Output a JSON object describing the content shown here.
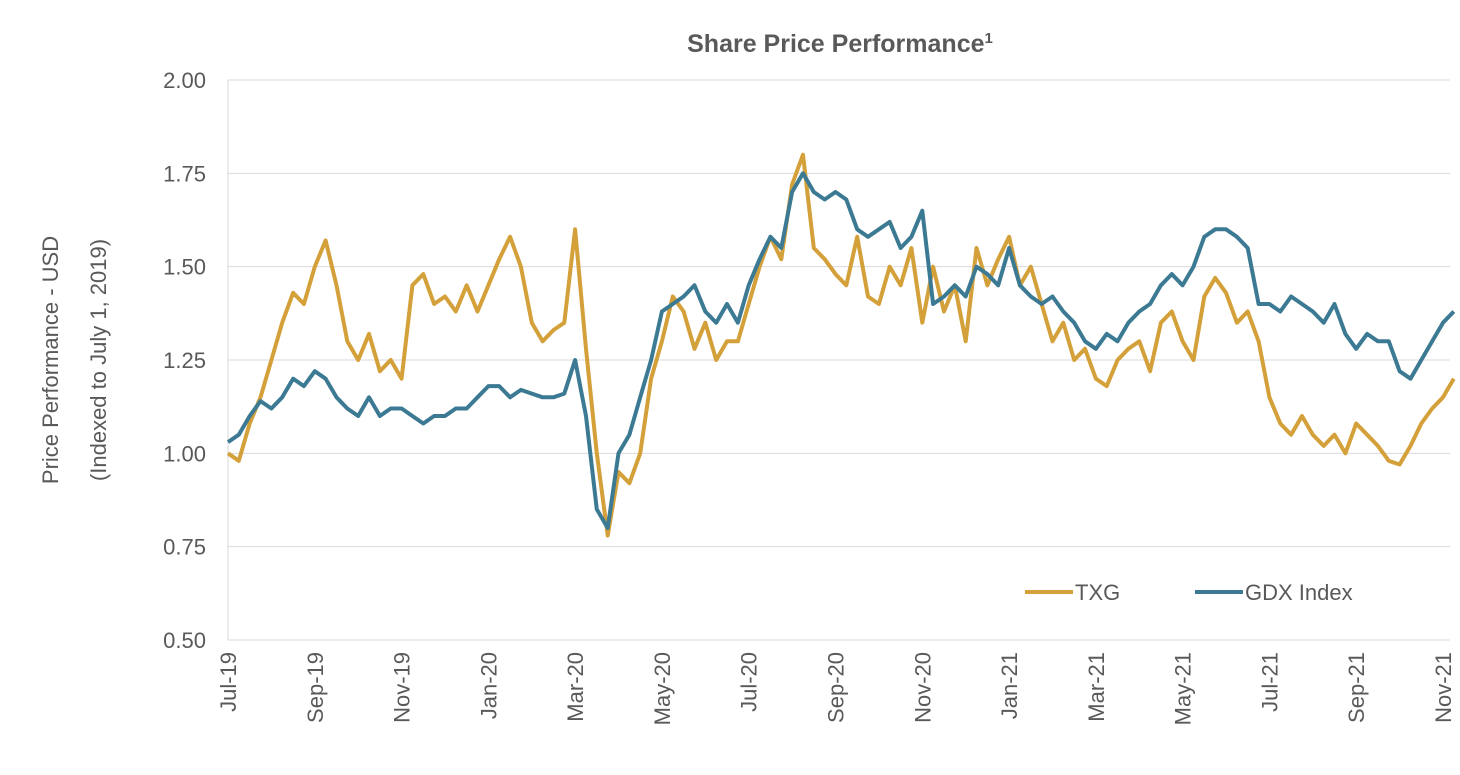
{
  "chart_data": {
    "type": "line",
    "title": "Share Price Performance",
    "title_footnote": "1",
    "ylabel": [
      "Price Performance - USD",
      "(Indexed to July 1, 2019)"
    ],
    "categories": [
      "Jul-19",
      null,
      null,
      null,
      null,
      null,
      null,
      null,
      "Sep-19",
      null,
      null,
      null,
      null,
      null,
      null,
      null,
      "Nov-19",
      null,
      null,
      null,
      null,
      null,
      null,
      null,
      "Jan-20",
      null,
      null,
      null,
      null,
      null,
      null,
      null,
      "Mar-20",
      null,
      null,
      null,
      null,
      null,
      null,
      null,
      "May-20",
      null,
      null,
      null,
      null,
      null,
      null,
      null,
      "Jul-20",
      null,
      null,
      null,
      null,
      null,
      null,
      null,
      "Sep-20",
      null,
      null,
      null,
      null,
      null,
      null,
      null,
      "Nov-20",
      null,
      null,
      null,
      null,
      null,
      null,
      null,
      "Jan-21",
      null,
      null,
      null,
      null,
      null,
      null,
      null,
      "Mar-21",
      null,
      null,
      null,
      null,
      null,
      null,
      null,
      "May-21",
      null,
      null,
      null,
      null,
      null,
      null,
      null,
      "Jul-21",
      null,
      null,
      null,
      null,
      null,
      null,
      null,
      "Sep-21",
      null,
      null,
      null,
      null,
      null,
      null,
      null,
      "Nov-21",
      null
    ],
    "series": [
      {
        "name": "TXG",
        "color": "#d4a03a",
        "values": [
          1.0,
          0.98,
          1.08,
          1.15,
          1.25,
          1.35,
          1.43,
          1.4,
          1.5,
          1.57,
          1.45,
          1.3,
          1.25,
          1.32,
          1.22,
          1.25,
          1.2,
          1.45,
          1.48,
          1.4,
          1.42,
          1.38,
          1.45,
          1.38,
          1.45,
          1.52,
          1.58,
          1.5,
          1.35,
          1.3,
          1.33,
          1.35,
          1.6,
          1.28,
          1.0,
          0.78,
          0.95,
          0.92,
          1.0,
          1.2,
          1.3,
          1.42,
          1.38,
          1.28,
          1.35,
          1.25,
          1.3,
          1.3,
          1.4,
          1.5,
          1.58,
          1.52,
          1.72,
          1.8,
          1.55,
          1.52,
          1.48,
          1.45,
          1.58,
          1.42,
          1.4,
          1.5,
          1.45,
          1.55,
          1.35,
          1.5,
          1.38,
          1.45,
          1.3,
          1.55,
          1.45,
          1.52,
          1.58,
          1.45,
          1.5,
          1.4,
          1.3,
          1.35,
          1.25,
          1.28,
          1.2,
          1.18,
          1.25,
          1.28,
          1.3,
          1.22,
          1.35,
          1.38,
          1.3,
          1.25,
          1.42,
          1.47,
          1.43,
          1.35,
          1.38,
          1.3,
          1.15,
          1.08,
          1.05,
          1.1,
          1.05,
          1.02,
          1.05,
          1.0,
          1.08,
          1.05,
          1.02,
          0.98,
          0.97,
          1.02,
          1.08,
          1.12,
          1.15,
          1.2
        ]
      },
      {
        "name": "GDX Index",
        "color": "#3c7a94",
        "values": [
          1.03,
          1.05,
          1.1,
          1.14,
          1.12,
          1.15,
          1.2,
          1.18,
          1.22,
          1.2,
          1.15,
          1.12,
          1.1,
          1.15,
          1.1,
          1.12,
          1.12,
          1.1,
          1.08,
          1.1,
          1.1,
          1.12,
          1.12,
          1.15,
          1.18,
          1.18,
          1.15,
          1.17,
          1.16,
          1.15,
          1.15,
          1.16,
          1.25,
          1.1,
          0.85,
          0.8,
          1.0,
          1.05,
          1.15,
          1.25,
          1.38,
          1.4,
          1.42,
          1.45,
          1.38,
          1.35,
          1.4,
          1.35,
          1.45,
          1.52,
          1.58,
          1.55,
          1.7,
          1.75,
          1.7,
          1.68,
          1.7,
          1.68,
          1.6,
          1.58,
          1.6,
          1.62,
          1.55,
          1.58,
          1.65,
          1.4,
          1.42,
          1.45,
          1.42,
          1.5,
          1.48,
          1.45,
          1.55,
          1.45,
          1.42,
          1.4,
          1.42,
          1.38,
          1.35,
          1.3,
          1.28,
          1.32,
          1.3,
          1.35,
          1.38,
          1.4,
          1.45,
          1.48,
          1.45,
          1.5,
          1.58,
          1.6,
          1.6,
          1.58,
          1.55,
          1.4,
          1.4,
          1.38,
          1.42,
          1.4,
          1.38,
          1.35,
          1.4,
          1.32,
          1.28,
          1.32,
          1.3,
          1.3,
          1.22,
          1.2,
          1.25,
          1.3,
          1.35,
          1.38
        ]
      }
    ],
    "ylim": [
      0.5,
      2.0
    ],
    "yticks": [
      {
        "value": 0.5,
        "label": "0.50"
      },
      0.75,
      {
        "value": 1.0,
        "label": "1.00"
      },
      1.25,
      {
        "value": 1.5,
        "label": "1.50"
      },
      1.75,
      {
        "value": 2.0,
        "label": "2.00"
      }
    ],
    "grid": true,
    "legend": "lower right"
  }
}
